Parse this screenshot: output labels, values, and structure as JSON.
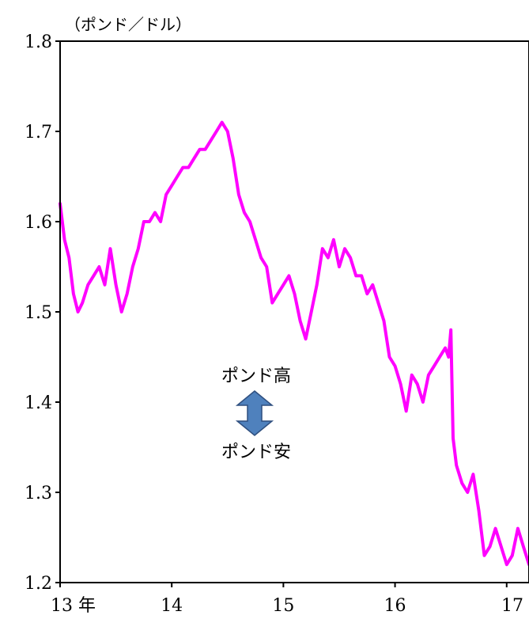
{
  "chart_data": {
    "type": "line",
    "y_unit_label": "（ポンド／ドル）",
    "ylim": [
      1.2,
      1.8
    ],
    "y_ticks": [
      {
        "value": 1.2,
        "label": "1.2"
      },
      {
        "value": 1.3,
        "label": "1.3"
      },
      {
        "value": 1.4,
        "label": "1.4"
      },
      {
        "value": 1.5,
        "label": "1.5"
      },
      {
        "value": 1.6,
        "label": "1.6"
      },
      {
        "value": 1.7,
        "label": "1.7"
      },
      {
        "value": 1.8,
        "label": "1.8"
      }
    ],
    "xlim": [
      2013.0,
      2017.2
    ],
    "x_ticks": [
      {
        "value": 2013,
        "label": "13 年"
      },
      {
        "value": 2014,
        "label": "14"
      },
      {
        "value": 2015,
        "label": "15"
      },
      {
        "value": 2016,
        "label": "16"
      },
      {
        "value": 2017,
        "label": "17"
      }
    ],
    "grid": false,
    "legend": "none",
    "annotations": {
      "up_label": "ポンド高",
      "down_label": "ポンド安"
    },
    "series": [
      {
        "color": "#ff00ff",
        "x": [
          2013.0,
          2013.04,
          2013.08,
          2013.12,
          2013.16,
          2013.2,
          2013.25,
          2013.3,
          2013.35,
          2013.4,
          2013.45,
          2013.5,
          2013.55,
          2013.6,
          2013.65,
          2013.7,
          2013.75,
          2013.8,
          2013.85,
          2013.9,
          2013.95,
          2014.0,
          2014.05,
          2014.1,
          2014.15,
          2014.2,
          2014.25,
          2014.3,
          2014.35,
          2014.4,
          2014.45,
          2014.5,
          2014.55,
          2014.6,
          2014.65,
          2014.7,
          2014.75,
          2014.8,
          2014.85,
          2014.9,
          2014.95,
          2015.0,
          2015.05,
          2015.1,
          2015.15,
          2015.2,
          2015.25,
          2015.3,
          2015.35,
          2015.4,
          2015.45,
          2015.5,
          2015.55,
          2015.6,
          2015.65,
          2015.7,
          2015.75,
          2015.8,
          2015.85,
          2015.9,
          2015.95,
          2016.0,
          2016.05,
          2016.1,
          2016.15,
          2016.2,
          2016.25,
          2016.3,
          2016.35,
          2016.4,
          2016.45,
          2016.48,
          2016.5,
          2016.52,
          2016.55,
          2016.6,
          2016.65,
          2016.7,
          2016.75,
          2016.8,
          2016.85,
          2016.9,
          2016.95,
          2017.0,
          2017.05,
          2017.1,
          2017.15,
          2017.2
        ],
        "y": [
          1.62,
          1.58,
          1.56,
          1.52,
          1.5,
          1.51,
          1.53,
          1.54,
          1.55,
          1.53,
          1.57,
          1.53,
          1.5,
          1.52,
          1.55,
          1.57,
          1.6,
          1.6,
          1.61,
          1.6,
          1.63,
          1.64,
          1.65,
          1.66,
          1.66,
          1.67,
          1.68,
          1.68,
          1.69,
          1.7,
          1.71,
          1.7,
          1.67,
          1.63,
          1.61,
          1.6,
          1.58,
          1.56,
          1.55,
          1.51,
          1.52,
          1.53,
          1.54,
          1.52,
          1.49,
          1.47,
          1.5,
          1.53,
          1.57,
          1.56,
          1.58,
          1.55,
          1.57,
          1.56,
          1.54,
          1.54,
          1.52,
          1.53,
          1.51,
          1.49,
          1.45,
          1.44,
          1.42,
          1.39,
          1.43,
          1.42,
          1.4,
          1.43,
          1.44,
          1.45,
          1.46,
          1.45,
          1.48,
          1.36,
          1.33,
          1.31,
          1.3,
          1.32,
          1.28,
          1.23,
          1.24,
          1.26,
          1.24,
          1.22,
          1.23,
          1.26,
          1.24,
          1.22
        ]
      }
    ]
  }
}
